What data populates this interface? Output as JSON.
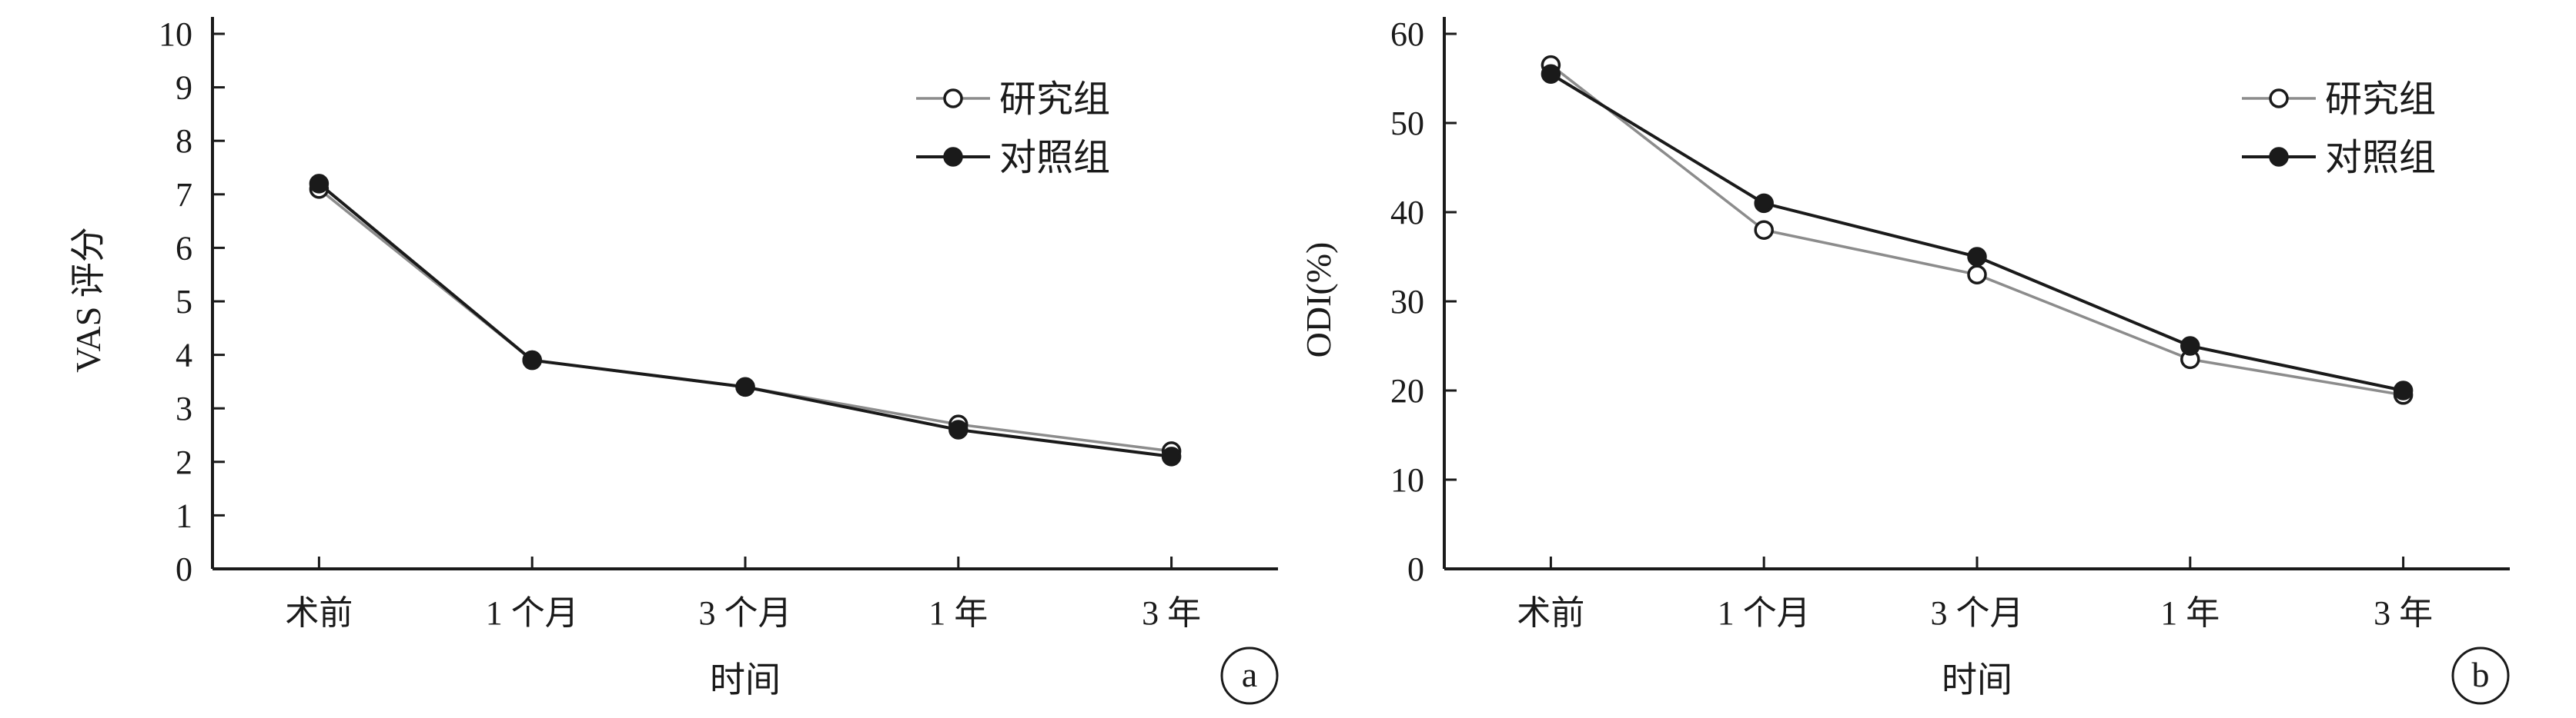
{
  "colors": {
    "study_line": "#8c8c8c",
    "control_line": "#1a1a1a",
    "axis": "#1a1a1a"
  },
  "chart_data": [
    {
      "type": "line",
      "panel_label": "a",
      "xlabel": "时间",
      "ylabel": "VAS 评分",
      "categories": [
        "术前",
        "1 个月",
        "3 个月",
        "1 年",
        "3 年"
      ],
      "ylim": [
        0,
        10
      ],
      "yticks": [
        0,
        1,
        2,
        3,
        4,
        5,
        6,
        7,
        8,
        9,
        10
      ],
      "grid": false,
      "legend_position": "top-right",
      "series": [
        {
          "name": "研究组",
          "marker": "open-circle",
          "values": [
            7.1,
            3.9,
            3.4,
            2.7,
            2.2
          ]
        },
        {
          "name": "对照组",
          "marker": "filled-circle",
          "values": [
            7.2,
            3.9,
            3.4,
            2.6,
            2.1
          ]
        }
      ]
    },
    {
      "type": "line",
      "panel_label": "b",
      "xlabel": "时间",
      "ylabel": "ODI(%)",
      "categories": [
        "术前",
        "1 个月",
        "3 个月",
        "1 年",
        "3 年"
      ],
      "ylim": [
        0,
        60
      ],
      "yticks": [
        0,
        10,
        20,
        30,
        40,
        50,
        60
      ],
      "grid": false,
      "legend_position": "top-right",
      "series": [
        {
          "name": "研究组",
          "marker": "open-circle",
          "values": [
            56.5,
            38.0,
            33.0,
            23.5,
            19.5
          ]
        },
        {
          "name": "对照组",
          "marker": "filled-circle",
          "values": [
            55.5,
            41.0,
            35.0,
            25.0,
            20.0
          ]
        }
      ]
    }
  ]
}
